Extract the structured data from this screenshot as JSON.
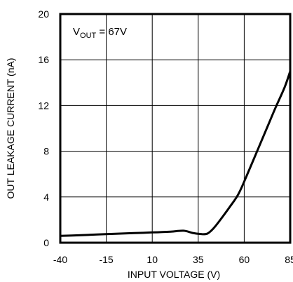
{
  "chart_data": {
    "type": "line",
    "title": "",
    "xlabel": "INPUT VOLTAGE (V)",
    "ylabel": "OUT LEAKAGE CURRENT (nA)",
    "xlim": [
      -40,
      85
    ],
    "ylim": [
      0,
      20
    ],
    "xticks": [
      -40,
      -15,
      10,
      35,
      60,
      85
    ],
    "yticks": [
      0,
      4,
      8,
      12,
      16,
      20
    ],
    "x_tick_labels": [
      "-40",
      "-15",
      "10",
      "35",
      "60",
      "85"
    ],
    "y_tick_labels": [
      "0",
      "4",
      "8",
      "12",
      "16",
      "20"
    ],
    "grid": true,
    "annotation": {
      "prefix": "V",
      "subscript": "OUT",
      "suffix": " = 67V"
    },
    "series": [
      {
        "x": [
          -40,
          -30,
          -20,
          -10,
          0,
          10,
          20,
          27,
          32,
          37,
          40,
          43,
          47,
          52,
          57,
          62,
          67,
          72,
          77,
          82,
          85
        ],
        "y": [
          0.6,
          0.65,
          0.72,
          0.78,
          0.84,
          0.9,
          0.97,
          1.05,
          0.85,
          0.75,
          0.8,
          1.2,
          2.0,
          3.1,
          4.3,
          6.1,
          8.0,
          9.9,
          11.8,
          13.6,
          15.0
        ]
      }
    ]
  }
}
